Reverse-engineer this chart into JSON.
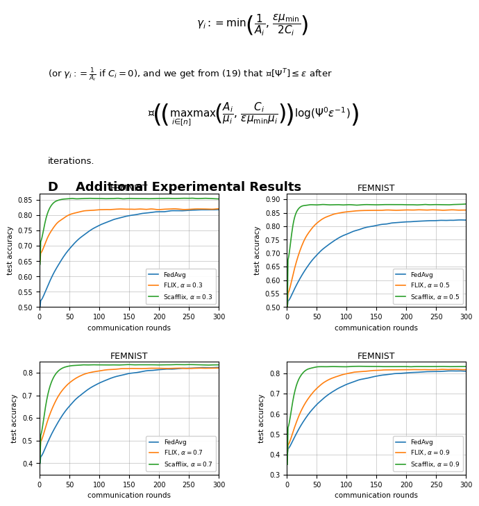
{
  "title_text": "D    Additional Experimental Results",
  "subplot_title": "FEMNIST",
  "xlabel": "communication rounds",
  "ylabel": "test accuracy",
  "x_max": 300,
  "x_ticks": [
    0,
    50,
    100,
    150,
    200,
    250,
    300
  ],
  "colors": {
    "FedAvg": "#1f77b4",
    "FLIX": "#ff7f0e",
    "Scafflix": "#2ca02c"
  },
  "subplots": [
    {
      "alpha": 0.3,
      "ylim": [
        0.5,
        0.87
      ],
      "yticks": [
        0.5,
        0.55,
        0.6,
        0.65,
        0.7,
        0.75,
        0.8,
        0.85
      ],
      "legend_loc": "lower right"
    },
    {
      "alpha": 0.5,
      "ylim": [
        0.5,
        0.92
      ],
      "yticks": [
        0.5,
        0.55,
        0.6,
        0.65,
        0.7,
        0.75,
        0.8,
        0.85,
        0.9
      ],
      "legend_loc": "lower right"
    },
    {
      "alpha": 0.7,
      "ylim": [
        0.35,
        0.85
      ],
      "yticks": [
        0.4,
        0.5,
        0.6,
        0.7,
        0.8
      ],
      "legend_loc": "lower right"
    },
    {
      "alpha": 0.9,
      "ylim": [
        0.3,
        0.86
      ],
      "yticks": [
        0.3,
        0.4,
        0.5,
        0.6,
        0.7,
        0.8
      ],
      "legend_loc": "lower right"
    }
  ]
}
